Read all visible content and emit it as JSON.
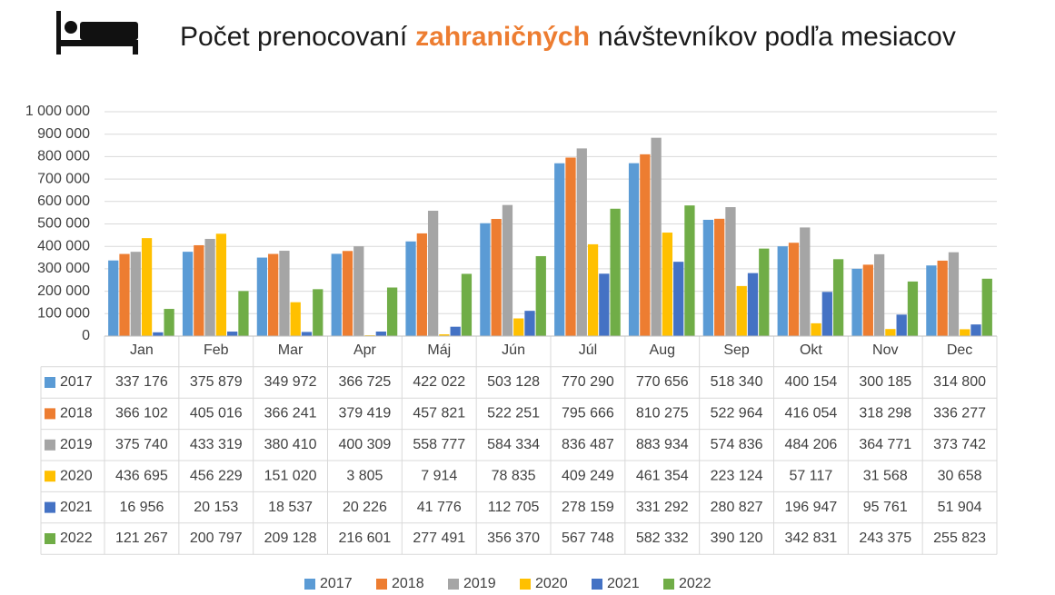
{
  "chart_data": {
    "type": "bar",
    "title_parts": [
      "Počet prenocovaní",
      "zahraničných",
      "návštevníkov podľa mesiacov"
    ],
    "title_highlight_color": "#ed7d31",
    "categories": [
      "Jan",
      "Feb",
      "Mar",
      "Apr",
      "Máj",
      "Jún",
      "Júl",
      "Aug",
      "Sep",
      "Okt",
      "Nov",
      "Dec"
    ],
    "series": [
      {
        "name": "2017",
        "color": "#5b9bd5",
        "values": [
          337176,
          375879,
          349972,
          366725,
          422022,
          503128,
          770290,
          770656,
          518340,
          400154,
          300185,
          314800
        ],
        "value_labels": [
          "337 176",
          "375 879",
          "349 972",
          "366 725",
          "422 022",
          "503 128",
          "770 290",
          "770 656",
          "518 340",
          "400 154",
          "300 185",
          "314 800"
        ]
      },
      {
        "name": "2018",
        "color": "#ed7d31",
        "values": [
          366102,
          405016,
          366241,
          379419,
          457821,
          522251,
          795666,
          810275,
          522964,
          416054,
          318298,
          336277
        ],
        "value_labels": [
          "366 102",
          "405 016",
          "366 241",
          "379 419",
          "457 821",
          "522 251",
          "795 666",
          "810 275",
          "522 964",
          "416 054",
          "318 298",
          "336 277"
        ]
      },
      {
        "name": "2019",
        "color": "#a5a5a5",
        "values": [
          375740,
          433319,
          380410,
          400309,
          558777,
          584334,
          836487,
          883934,
          574836,
          484206,
          364771,
          373742
        ],
        "value_labels": [
          "375 740",
          "433 319",
          "380 410",
          "400 309",
          "558 777",
          "584 334",
          "836 487",
          "883 934",
          "574 836",
          "484 206",
          "364 771",
          "373 742"
        ]
      },
      {
        "name": "2020",
        "color": "#ffc000",
        "values": [
          436695,
          456229,
          151020,
          3805,
          7914,
          78835,
          409249,
          461354,
          223124,
          57117,
          31568,
          30658
        ],
        "value_labels": [
          "436 695",
          "456 229",
          "151 020",
          "3 805",
          "7 914",
          "78 835",
          "409 249",
          "461 354",
          "223 124",
          "57 117",
          "31 568",
          "30 658"
        ]
      },
      {
        "name": "2021",
        "color": "#4472c4",
        "values": [
          16956,
          20153,
          18537,
          20226,
          41776,
          112705,
          278159,
          331292,
          280827,
          196947,
          95761,
          51904
        ],
        "value_labels": [
          "16 956",
          "20 153",
          "18 537",
          "20 226",
          "41 776",
          "112 705",
          "278 159",
          "331 292",
          "280 827",
          "196 947",
          "95 761",
          "51 904"
        ]
      },
      {
        "name": "2022",
        "color": "#70ad47",
        "values": [
          121267,
          200797,
          209128,
          216601,
          277491,
          356370,
          567748,
          582332,
          390120,
          342831,
          243375,
          255823
        ],
        "value_labels": [
          "121 267",
          "200 797",
          "209 128",
          "216 601",
          "277 491",
          "356 370",
          "567 748",
          "582 332",
          "390 120",
          "342 831",
          "243 375",
          "255 823"
        ]
      }
    ],
    "ylim": [
      0,
      1000000
    ],
    "yticks": [
      0,
      {
        "value": 100000,
        "label": "100 000"
      },
      {
        "value": 200000,
        "label": "200 000"
      },
      {
        "value": 300000,
        "label": "300 000"
      },
      {
        "value": 400000,
        "label": "400 000"
      },
      {
        "value": 500000,
        "label": "500 000"
      },
      {
        "value": 600000,
        "label": "600 000"
      },
      {
        "value": 700000,
        "label": "700 000"
      },
      {
        "value": 800000,
        "label": "800 000"
      },
      {
        "value": 900000,
        "label": "900 000"
      },
      {
        "value": 1000000,
        "label": "1 000 000"
      }
    ],
    "grid": true,
    "legend": "bottom"
  }
}
